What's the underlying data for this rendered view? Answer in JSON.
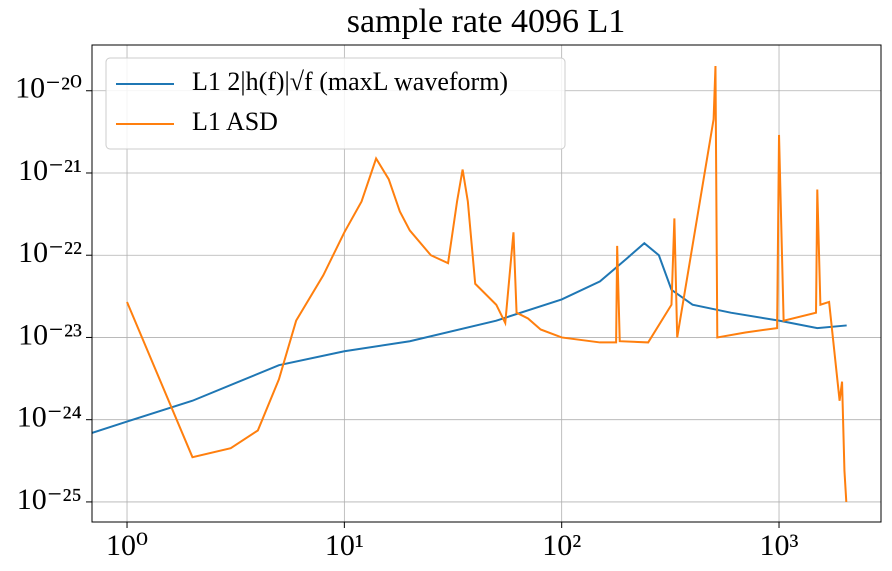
{
  "chart_data": {
    "type": "line",
    "title": "sample rate 4096 L1",
    "xscale": "log",
    "yscale": "log",
    "grid": true,
    "legend": "upper left",
    "xlim": [
      0.69,
      2946
    ],
    "ylim": [
      5.7e-26,
      3.6e-20
    ],
    "xticks": [
      {
        "value": 1,
        "label": "10⁰"
      },
      {
        "value": 10,
        "label": "10¹"
      },
      {
        "value": 100,
        "label": "10²"
      },
      {
        "value": 1000,
        "label": "10³"
      }
    ],
    "yticks": [
      {
        "value": 1e-25,
        "label": "10⁻²⁵"
      },
      {
        "value": 1e-24,
        "label": "10⁻²⁴"
      },
      {
        "value": 1e-23,
        "label": "10⁻²³"
      },
      {
        "value": 1e-22,
        "label": "10⁻²²"
      },
      {
        "value": 1e-21,
        "label": "10⁻²¹"
      },
      {
        "value": 1e-20,
        "label": "10⁻²⁰"
      }
    ],
    "series": [
      {
        "name": "L1 2|h(f)|√f (maxL waveform)",
        "color": "#1f77b4",
        "x": [
          0.69,
          1,
          2,
          5,
          10,
          20,
          50,
          100,
          150,
          200,
          240,
          280,
          320,
          400,
          600,
          1000,
          1500,
          2048
        ],
        "values": [
          6.9e-25,
          9.5e-25,
          1.7e-24,
          4.6e-24,
          6.8e-24,
          9e-24,
          1.6e-23,
          2.9e-23,
          4.8e-23,
          9.2e-23,
          1.4e-22,
          1e-22,
          3.8e-23,
          2.5e-23,
          2e-23,
          1.6e-23,
          1.3e-23,
          1.4e-23
        ]
      },
      {
        "name": "L1 ASD",
        "color": "#ff7f0e",
        "x": [
          1,
          2,
          3,
          4,
          5,
          6,
          8,
          10,
          12,
          14,
          16,
          18,
          20,
          25,
          30,
          33,
          35,
          37,
          40,
          50,
          55,
          60,
          62,
          70,
          80,
          100,
          150,
          178,
          180,
          185,
          250,
          320,
          330,
          340,
          500,
          510,
          520,
          700,
          980,
          1000,
          1050,
          1480,
          1500,
          1550,
          1700,
          1900,
          1950,
          2000,
          2040
        ],
        "values": [
          2.7e-23,
          3.5e-25,
          4.5e-25,
          7.4e-25,
          3.1e-24,
          1.6e-23,
          5.7e-23,
          1.9e-22,
          4.5e-22,
          1.5e-21,
          8.4e-22,
          3.4e-22,
          2e-22,
          1e-22,
          8e-23,
          4.5e-22,
          1.1e-21,
          4.5e-22,
          4.5e-23,
          2.5e-23,
          1.5e-23,
          1.9e-22,
          2e-23,
          1.7e-23,
          1.25e-23,
          1e-23,
          8.7e-24,
          8.7e-24,
          1.3e-22,
          9e-24,
          8.7e-24,
          2.5e-23,
          2.8e-22,
          1e-23,
          4.5e-21,
          2e-20,
          1e-23,
          1.15e-23,
          1.3e-23,
          2.9e-21,
          1.6e-23,
          2e-23,
          6.3e-22,
          2.5e-23,
          2.7e-23,
          1.7e-24,
          2.9e-24,
          2.4e-25,
          1e-25
        ]
      }
    ]
  }
}
